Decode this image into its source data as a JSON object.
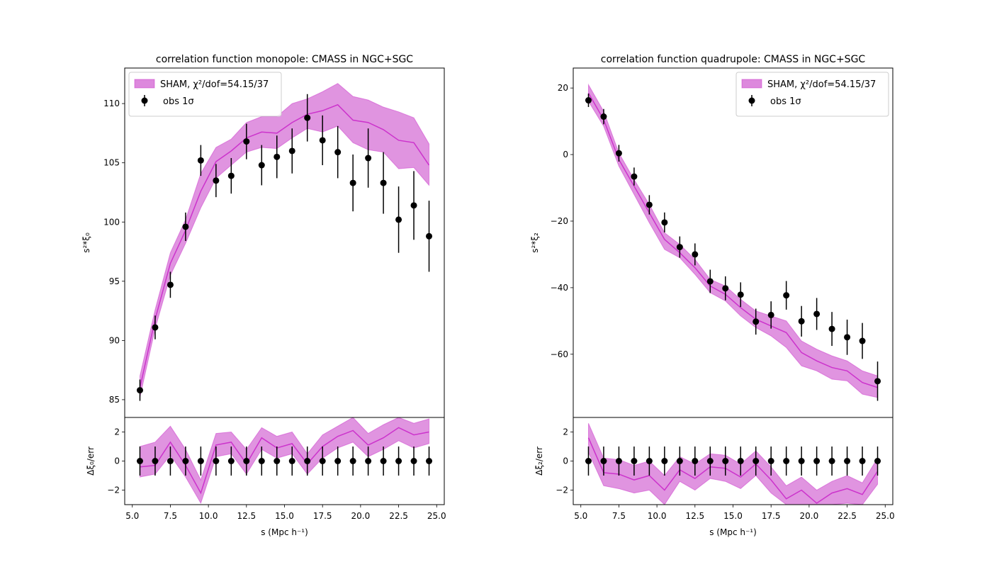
{
  "colors": {
    "model_fill": "#dd88dd",
    "model_line": "#cc33cc",
    "obs": "#000000"
  },
  "chart_data": [
    {
      "type": "line",
      "panel": "monopole",
      "title": "correlation function monopole: CMASS in NGC+SGC",
      "xlabel": "s (Mpc h⁻¹)",
      "ylabel": "s²*ξ₀",
      "resid_ylabel": "Δξ₀/err",
      "xlim": [
        4.5,
        25.5
      ],
      "ylim": [
        83.5,
        113.0
      ],
      "resid_ylim": [
        -3.0,
        3.0
      ],
      "xticks": [
        "5.0",
        "7.5",
        "10.0",
        "12.5",
        "15.0",
        "17.5",
        "20.0",
        "22.5",
        "25.0"
      ],
      "yticks": [
        "85",
        "90",
        "95",
        "100",
        "105",
        "110"
      ],
      "resid_yticks": [
        "−2",
        "0",
        "2"
      ],
      "legend": {
        "position": "upper-left",
        "model_label": "SHAM, χ²/dof=54.15/37",
        "obs_label": "obs 1σ"
      },
      "x": [
        5.5,
        6.5,
        7.5,
        8.5,
        9.5,
        10.5,
        11.5,
        12.5,
        13.5,
        14.5,
        15.5,
        16.5,
        17.5,
        18.5,
        19.5,
        20.5,
        21.5,
        22.5,
        23.5,
        24.5
      ],
      "series": [
        {
          "name": "SHAM, χ²/dof=54.15/37",
          "kind": "band",
          "values": [
            86.0,
            91.8,
            96.5,
            99.3,
            102.6,
            105.1,
            106.0,
            107.1,
            107.6,
            107.5,
            108.4,
            109.1,
            109.4,
            109.9,
            108.6,
            108.4,
            107.8,
            106.9,
            106.7,
            104.8
          ],
          "lower": [
            85.2,
            91.0,
            95.5,
            98.2,
            101.2,
            103.7,
            104.8,
            105.9,
            106.3,
            106.2,
            107.1,
            107.9,
            107.6,
            108.1,
            106.7,
            106.1,
            105.9,
            104.5,
            104.6,
            103.1
          ],
          "upper": [
            87.0,
            92.6,
            97.4,
            100.2,
            104.1,
            106.3,
            107.0,
            108.4,
            108.9,
            108.9,
            110.0,
            110.4,
            111.0,
            111.7,
            110.6,
            110.3,
            109.7,
            109.3,
            108.8,
            106.6
          ]
        },
        {
          "name": "obs 1σ",
          "kind": "errorbar",
          "values": [
            85.8,
            91.1,
            94.7,
            99.6,
            105.2,
            103.5,
            103.9,
            106.8,
            104.8,
            105.5,
            106.0,
            108.8,
            106.9,
            105.9,
            103.3,
            105.4,
            103.3,
            100.2,
            101.4,
            98.8
          ],
          "errors": [
            0.9,
            1.0,
            1.1,
            1.2,
            1.3,
            1.4,
            1.5,
            1.5,
            1.7,
            1.8,
            1.9,
            2.0,
            2.1,
            2.2,
            2.4,
            2.5,
            2.6,
            2.8,
            2.9,
            3.0
          ]
        }
      ],
      "residual": {
        "model": [
          -0.4,
          -0.3,
          1.3,
          -0.3,
          -2.2,
          1.1,
          1.3,
          -0.2,
          1.6,
          0.9,
          1.2,
          -0.2,
          1.0,
          1.7,
          2.1,
          1.1,
          1.6,
          2.3,
          1.8,
          2.0
        ],
        "lower": [
          -1.1,
          -0.9,
          0.4,
          -1.1,
          -2.9,
          0.3,
          0.5,
          -0.9,
          0.8,
          0.2,
          0.5,
          -0.9,
          0.2,
          0.9,
          1.3,
          0.3,
          0.8,
          1.4,
          0.9,
          1.2
        ],
        "upper": [
          1.0,
          1.3,
          2.4,
          0.8,
          -1.3,
          1.9,
          2.0,
          0.8,
          2.3,
          1.7,
          2.0,
          0.5,
          1.8,
          2.4,
          3.0,
          1.9,
          2.5,
          3.0,
          2.6,
          2.9
        ],
        "obs": [
          0,
          0,
          0,
          0,
          0,
          0,
          0,
          0,
          0,
          0,
          0,
          0,
          0,
          0,
          0,
          0,
          0,
          0,
          0,
          0
        ],
        "obs_err": [
          1,
          1,
          1,
          1,
          1,
          1,
          1,
          1,
          1,
          1,
          1,
          1,
          1,
          1,
          1,
          1,
          1,
          1,
          1,
          1
        ]
      }
    },
    {
      "type": "line",
      "panel": "quadrupole",
      "title": "correlation function quadrupole: CMASS in NGC+SGC",
      "xlabel": "s (Mpc h⁻¹)",
      "ylabel": "s²*ξ₂",
      "resid_ylabel": "Δξ₂/err",
      "xlim": [
        4.5,
        25.5
      ],
      "ylim": [
        -79.0,
        26.0
      ],
      "resid_ylim": [
        -3.0,
        3.0
      ],
      "xticks": [
        "5.0",
        "7.5",
        "10.0",
        "12.5",
        "15.0",
        "17.5",
        "20.0",
        "22.5",
        "25.0"
      ],
      "yticks": [
        "20",
        "0",
        "−20",
        "−40",
        "−60"
      ],
      "resid_yticks": [
        "−2",
        "0",
        "2"
      ],
      "legend": {
        "position": "upper-right",
        "model_label": "SHAM, χ²/dof=54.15/37",
        "obs_label": "obs 1σ"
      },
      "x": [
        5.5,
        6.5,
        7.5,
        8.5,
        9.5,
        10.5,
        11.5,
        12.5,
        13.5,
        14.5,
        15.5,
        16.5,
        17.5,
        18.5,
        19.5,
        20.5,
        21.5,
        22.5,
        23.5,
        24.5
      ],
      "series": [
        {
          "name": "SHAM, χ²/dof=54.15/37",
          "kind": "band",
          "values": [
            18.5,
            10.5,
            -1.5,
            -9.5,
            -17.5,
            -25.5,
            -29.5,
            -34.0,
            -39.5,
            -42.0,
            -46.0,
            -49.5,
            -51.5,
            -53.5,
            -59.5,
            -62.0,
            -64.0,
            -65.0,
            -68.5,
            -70.0
          ],
          "lower": [
            16.0,
            8.5,
            -3.5,
            -12.0,
            -20.5,
            -28.5,
            -31.0,
            -36.0,
            -41.5,
            -44.0,
            -48.5,
            -52.0,
            -54.5,
            -58.0,
            -63.5,
            -65.0,
            -67.5,
            -68.0,
            -72.0,
            -73.0
          ],
          "upper": [
            21.0,
            13.0,
            0.5,
            -7.5,
            -15.0,
            -23.5,
            -27.0,
            -31.5,
            -37.5,
            -39.5,
            -43.5,
            -47.0,
            -48.5,
            -50.0,
            -56.0,
            -58.5,
            -60.5,
            -62.0,
            -65.0,
            -66.5
          ]
        },
        {
          "name": "obs 1σ",
          "kind": "errorbar",
          "values": [
            16.3,
            11.4,
            0.4,
            -6.6,
            -15.1,
            -20.4,
            -27.8,
            -30.0,
            -38.1,
            -40.2,
            -42.1,
            -50.2,
            -48.2,
            -42.3,
            -50.1,
            -47.9,
            -52.4,
            -54.9,
            -56.0,
            -68.1
          ],
          "errors": [
            2.0,
            2.3,
            2.5,
            2.7,
            2.9,
            3.0,
            3.2,
            3.3,
            3.5,
            3.6,
            3.7,
            3.9,
            4.1,
            4.3,
            4.6,
            4.8,
            5.1,
            5.3,
            5.4,
            5.9
          ]
        }
      ],
      "residual": {
        "model": [
          1.6,
          -0.8,
          -0.9,
          -1.3,
          -1.0,
          -2.0,
          -0.6,
          -1.2,
          -0.4,
          -0.5,
          -1.1,
          -0.2,
          -1.3,
          -2.6,
          -2.0,
          -2.9,
          -2.2,
          -1.9,
          -2.3,
          -0.7
        ],
        "lower": [
          0.6,
          -1.7,
          -1.9,
          -2.2,
          -2.0,
          -3.0,
          -1.4,
          -2.0,
          -1.2,
          -1.4,
          -1.9,
          -1.0,
          -2.2,
          -3.0,
          -3.0,
          -3.0,
          -3.0,
          -2.9,
          -3.0,
          -1.6
        ],
        "upper": [
          2.6,
          0.2,
          0.1,
          -0.3,
          0.0,
          -1.0,
          0.3,
          -0.2,
          0.5,
          0.4,
          -0.2,
          0.7,
          -0.4,
          -1.7,
          -1.1,
          -2.0,
          -1.4,
          -1.0,
          -1.5,
          0.2
        ],
        "obs": [
          0,
          0,
          0,
          0,
          0,
          0,
          0,
          0,
          0,
          0,
          0,
          0,
          0,
          0,
          0,
          0,
          0,
          0,
          0,
          0
        ],
        "obs_err": [
          1,
          1,
          1,
          1,
          1,
          1,
          1,
          1,
          1,
          1,
          1,
          1,
          1,
          1,
          1,
          1,
          1,
          1,
          1,
          1
        ]
      }
    }
  ]
}
